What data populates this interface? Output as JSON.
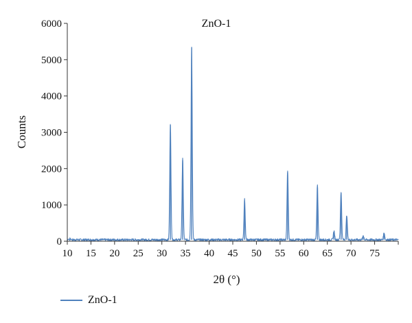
{
  "chart_data": {
    "type": "line",
    "title": "ZnO-1",
    "xlabel": "2θ (°)",
    "ylabel": "Counts",
    "xlim": [
      10,
      80
    ],
    "ylim": [
      0,
      6000
    ],
    "xticks": [
      10,
      15,
      20,
      25,
      30,
      35,
      40,
      45,
      50,
      55,
      60,
      65,
      70,
      75
    ],
    "yticks": [
      0,
      1000,
      2000,
      3000,
      4000,
      5000,
      6000
    ],
    "grid": false,
    "legend_position": "bottom-left",
    "color": "#4f81bd",
    "series": [
      {
        "name": "ZnO-1",
        "peaks": [
          {
            "x": 31.8,
            "y": 3200
          },
          {
            "x": 34.4,
            "y": 2230
          },
          {
            "x": 36.3,
            "y": 5330
          },
          {
            "x": 47.5,
            "y": 1110
          },
          {
            "x": 56.6,
            "y": 1900
          },
          {
            "x": 62.9,
            "y": 1500
          },
          {
            "x": 66.4,
            "y": 250
          },
          {
            "x": 67.9,
            "y": 1330
          },
          {
            "x": 69.1,
            "y": 680
          },
          {
            "x": 72.6,
            "y": 120
          },
          {
            "x": 77.0,
            "y": 200
          }
        ],
        "baseline": 40
      }
    ]
  }
}
